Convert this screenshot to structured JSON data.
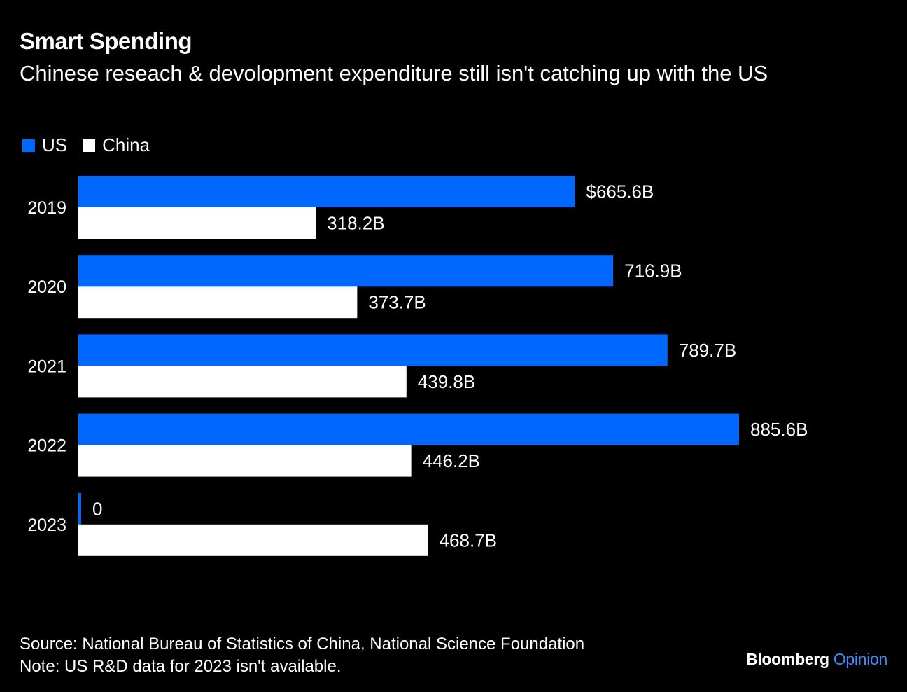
{
  "title": "Smart Spending",
  "subtitle": "Chinese reseach & devolopment expenditure still isn't catching up with the US",
  "legend": [
    {
      "name": "US",
      "color": "#0068ff"
    },
    {
      "name": "China",
      "color": "#ffffff"
    }
  ],
  "chart_data": {
    "type": "bar",
    "orientation": "horizontal",
    "categories": [
      "2019",
      "2020",
      "2021",
      "2022",
      "2023"
    ],
    "series": [
      {
        "name": "US",
        "color": "#0068ff",
        "values": [
          665.6,
          716.9,
          789.7,
          885.6,
          0
        ],
        "labels": [
          "$665.6B",
          "716.9B",
          "789.7B",
          "885.6B",
          "0"
        ]
      },
      {
        "name": "China",
        "color": "#ffffff",
        "values": [
          318.2,
          373.7,
          439.8,
          446.2,
          468.7
        ],
        "labels": [
          "318.2B",
          "373.7B",
          "439.8B",
          "446.2B",
          "468.7B"
        ]
      }
    ],
    "xlim": [
      0,
      885.6
    ],
    "grid": false,
    "legend_position": "top-left"
  },
  "footer": {
    "source": "Source: National Bureau of Statistics of China, National Science Foundation",
    "note": "Note: US R&D data for 2023 isn't available."
  },
  "brand": {
    "name": "Bloomberg",
    "suffix": "Opinion",
    "suffix_color": "#3d8bff"
  }
}
